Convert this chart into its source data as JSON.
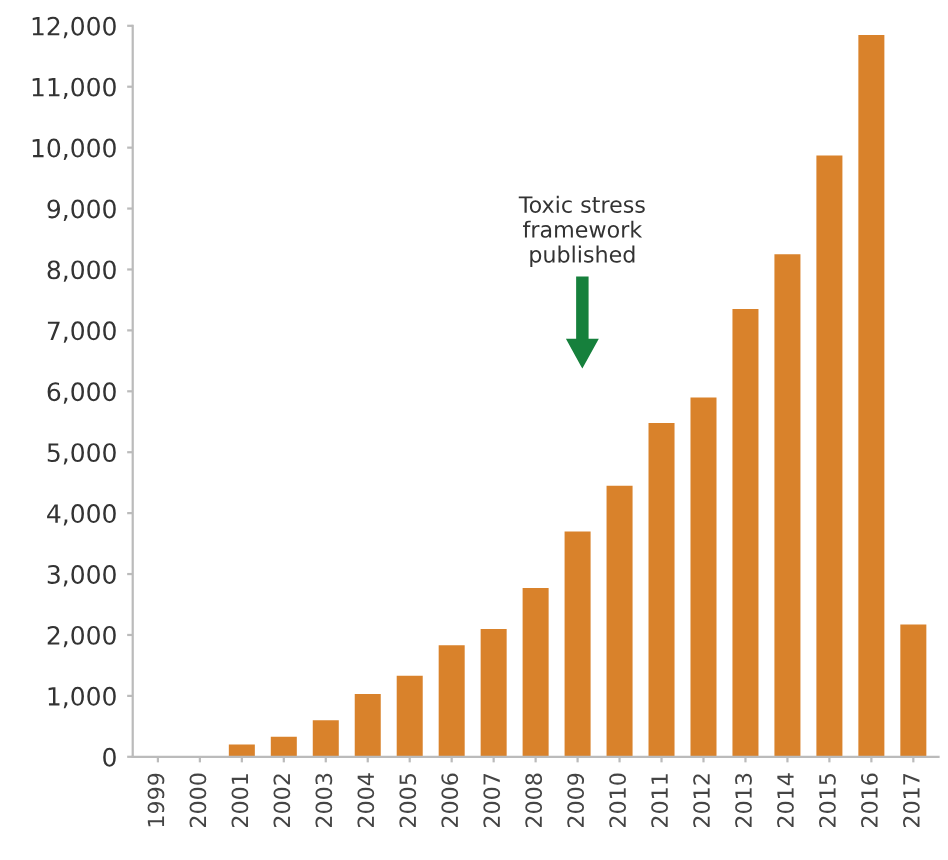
{
  "chart_data": {
    "type": "bar",
    "categories": [
      "1999",
      "2000",
      "2001",
      "2002",
      "2003",
      "2004",
      "2005",
      "2006",
      "2007",
      "2008",
      "2009",
      "2010",
      "2011",
      "2012",
      "2013",
      "2014",
      "2015",
      "2016",
      "2017"
    ],
    "values": [
      0,
      0,
      200,
      330,
      600,
      1030,
      1330,
      1830,
      2100,
      2770,
      3700,
      4450,
      5480,
      5900,
      7350,
      8250,
      9870,
      11850,
      2170
    ],
    "color": "#d9822b",
    "ylim": [
      0,
      12000
    ],
    "yticks": [
      {
        "value": 0,
        "label": "0"
      },
      {
        "value": 1000,
        "label": "1,000"
      },
      {
        "value": 2000,
        "label": "2,000"
      },
      {
        "value": 3000,
        "label": "3,000"
      },
      {
        "value": 4000,
        "label": "4,000"
      },
      {
        "value": 5000,
        "label": "5,000"
      },
      {
        "value": 6000,
        "label": "6,000"
      },
      {
        "value": 7000,
        "label": "7,000"
      },
      {
        "value": 8000,
        "label": "8,000"
      },
      {
        "value": 9000,
        "label": "9,000"
      },
      {
        "value": 10000,
        "label": "10,000"
      },
      {
        "value": 11000,
        "label": "11,000"
      },
      {
        "value": 12000,
        "label": "12,000"
      }
    ],
    "grid": false,
    "annotations": [
      "Toxic stress\nframework\npublished"
    ]
  }
}
